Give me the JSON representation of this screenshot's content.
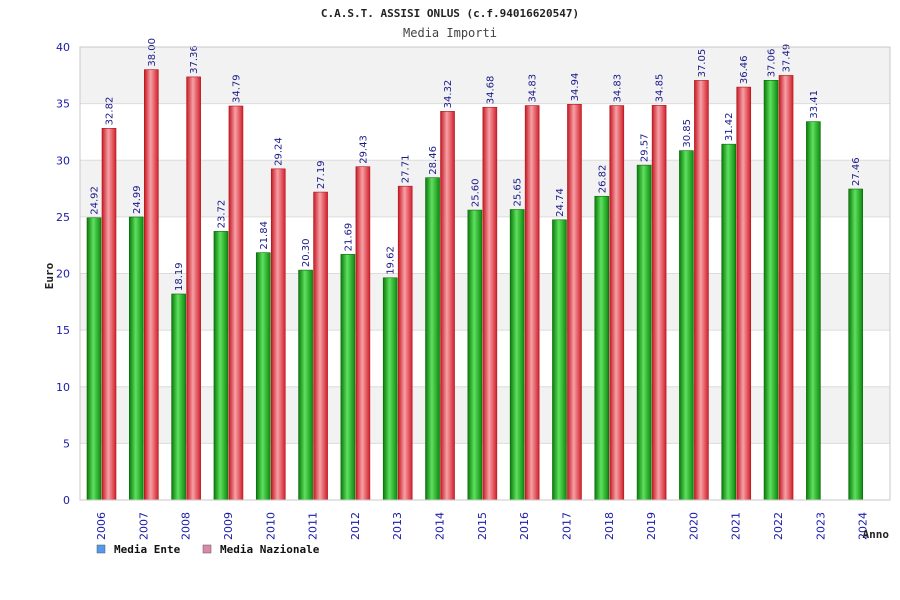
{
  "chart_data": {
    "type": "bar",
    "title": "C.A.S.T. ASSISI ONLUS (c.f.94016620547)",
    "subtitle": "Media Importi",
    "xlabel": "Anno",
    "ylabel": "Euro",
    "ylim": [
      0,
      40
    ],
    "yticks": [
      0,
      5,
      10,
      15,
      20,
      25,
      30,
      35,
      40
    ],
    "grid": true,
    "legend_position": "bottom-left",
    "categories": [
      "2006",
      "2007",
      "2008",
      "2009",
      "2010",
      "2011",
      "2012",
      "2013",
      "2014",
      "2015",
      "2016",
      "2017",
      "2018",
      "2019",
      "2020",
      "2021",
      "2022",
      "2023",
      "2024"
    ],
    "series": [
      {
        "name": "Media Ente",
        "color": "#22b322",
        "legend_color": "#5599ee",
        "values": [
          24.92,
          24.99,
          18.19,
          23.72,
          21.84,
          20.3,
          21.69,
          19.62,
          28.46,
          25.6,
          25.65,
          24.74,
          26.82,
          29.57,
          30.85,
          31.42,
          37.06,
          33.41,
          27.46
        ],
        "labels": [
          "24.92",
          "24.99",
          "18.19",
          "23.72",
          "21.84",
          "20.30",
          "21.69",
          "19.62",
          "28.46",
          "25.60",
          "25.65",
          "24.74",
          "26.82",
          "29.57",
          "30.85",
          "31.42",
          "37.06",
          "33.41",
          "27.46"
        ]
      },
      {
        "name": "Media Nazionale",
        "color": "#e8303a",
        "legend_color": "#dd88aa",
        "values": [
          32.82,
          38.0,
          37.36,
          34.79,
          29.24,
          27.19,
          29.43,
          27.71,
          34.32,
          34.68,
          34.83,
          34.94,
          34.83,
          34.85,
          37.05,
          36.46,
          37.49,
          null,
          null
        ],
        "labels": [
          "32.82",
          "38.00",
          "37.36",
          "34.79",
          "29.24",
          "27.19",
          "29.43",
          "27.71",
          "34.32",
          "34.68",
          "34.83",
          "34.94",
          "34.83",
          "34.85",
          "37.05",
          "36.46",
          "37.49",
          null,
          null
        ]
      }
    ]
  }
}
